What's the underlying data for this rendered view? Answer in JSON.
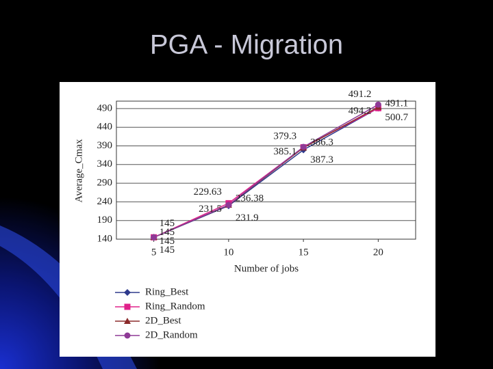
{
  "slide_title": "PGA - Migration",
  "chart_data": {
    "type": "line",
    "x": [
      5,
      10,
      15,
      20
    ],
    "xlim": [
      2.5,
      22.5
    ],
    "xticks": [
      5,
      10,
      15,
      20
    ],
    "ylim": [
      140,
      510
    ],
    "yticks": [
      140,
      190,
      240,
      290,
      340,
      390,
      440,
      490
    ],
    "x_label": "Number of jobs",
    "y_label": "Average_Cmax",
    "grid": true,
    "series": [
      {
        "name": "Ring_Best",
        "color": "#2e3a8c",
        "values": [
          145,
          229.63,
          379.3,
          491.2
        ]
      },
      {
        "name": "Ring_Random",
        "color": "#e0218a",
        "values": [
          145,
          236.38,
          386.3,
          491.1
        ]
      },
      {
        "name": "2D_Best",
        "color": "#8b2a2a",
        "values": [
          145,
          231.5,
          385.1,
          494.2
        ]
      },
      {
        "name": "2D_Random",
        "color": "#8e3a96",
        "values": [
          145,
          231.9,
          387.3,
          500.7
        ]
      }
    ]
  }
}
